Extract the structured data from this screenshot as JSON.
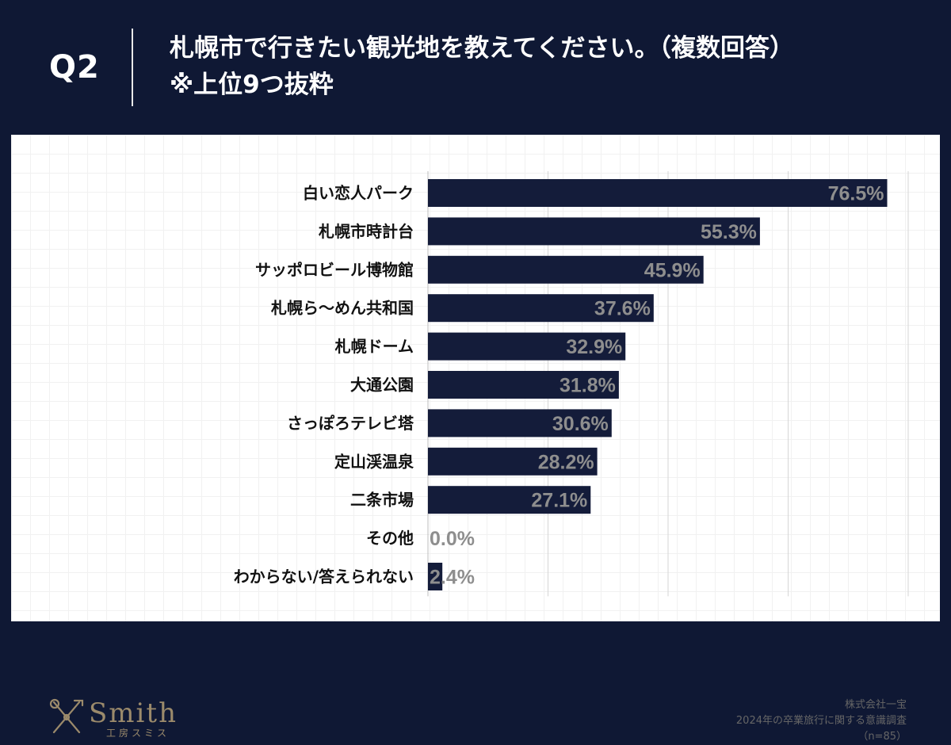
{
  "header": {
    "question": "Q2",
    "title_line1": "札幌市で行きたい観光地を教えてください。（複数回答）",
    "title_line2": "※上位9つ抜粋"
  },
  "chart_data": {
    "type": "bar",
    "orientation": "horizontal",
    "categories": [
      "白い恋人パーク",
      "札幌市時計台",
      "サッポロビール博物館",
      "札幌ら〜めん共和国",
      "札幌ドーム",
      "大通公園",
      "さっぽろテレビ塔",
      "定山渓温泉",
      "二条市場",
      "その他",
      "わからない/答えられない"
    ],
    "values": [
      76.5,
      55.3,
      45.9,
      37.6,
      32.9,
      31.8,
      30.6,
      28.2,
      27.1,
      0.0,
      2.4
    ],
    "value_labels": [
      "76.5%",
      "55.3%",
      "45.9%",
      "37.6%",
      "32.9%",
      "31.8%",
      "30.6%",
      "28.2%",
      "27.1%",
      "0.0%",
      "2.4%"
    ],
    "xlim": [
      0,
      80
    ],
    "gridlines": [
      20,
      40,
      60,
      80
    ],
    "unit": "%",
    "bar_color": "#141c3a"
  },
  "source": {
    "company": "株式会社一宝",
    "survey": "2024年の卒業旅行に関する意識調査",
    "sample": "（n=85）"
  },
  "logo": {
    "name": "Smith",
    "sub": "工房スミス",
    "color": "#9b8a6b"
  },
  "colors": {
    "background": "#0f1834",
    "panel": "#ffffff",
    "value_text": "#8e8e8e"
  }
}
